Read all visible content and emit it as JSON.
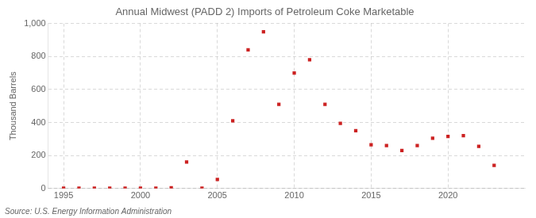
{
  "chart_data": {
    "type": "scatter",
    "title": "Annual Midwest (PADD 2) Imports of Petroleum Coke Marketable",
    "ylabel": "Thousand Barrels",
    "source": "Source: U.S. Energy Information Administration",
    "x": [
      1995,
      1996,
      1997,
      1998,
      1999,
      2000,
      2001,
      2002,
      2003,
      2004,
      2005,
      2006,
      2007,
      2008,
      2009,
      2010,
      2011,
      2012,
      2013,
      2014,
      2015,
      2016,
      2017,
      2018,
      2019,
      2020,
      2021,
      2022,
      2023
    ],
    "values": [
      2,
      2,
      2,
      2,
      2,
      2,
      2,
      5,
      160,
      2,
      55,
      410,
      840,
      950,
      510,
      700,
      780,
      510,
      395,
      350,
      265,
      260,
      230,
      260,
      305,
      315,
      320,
      255,
      140
    ],
    "color": "#cc2222",
    "marker": "square",
    "xlim": [
      1994.0,
      2025.0
    ],
    "xticks": [
      1995,
      2000,
      2005,
      2010,
      2015,
      2020
    ],
    "ylim": [
      0,
      1000
    ],
    "yticks": [
      0,
      200,
      400,
      600,
      800,
      {
        "value": 1000,
        "label": "1,000"
      }
    ],
    "grid": true
  }
}
